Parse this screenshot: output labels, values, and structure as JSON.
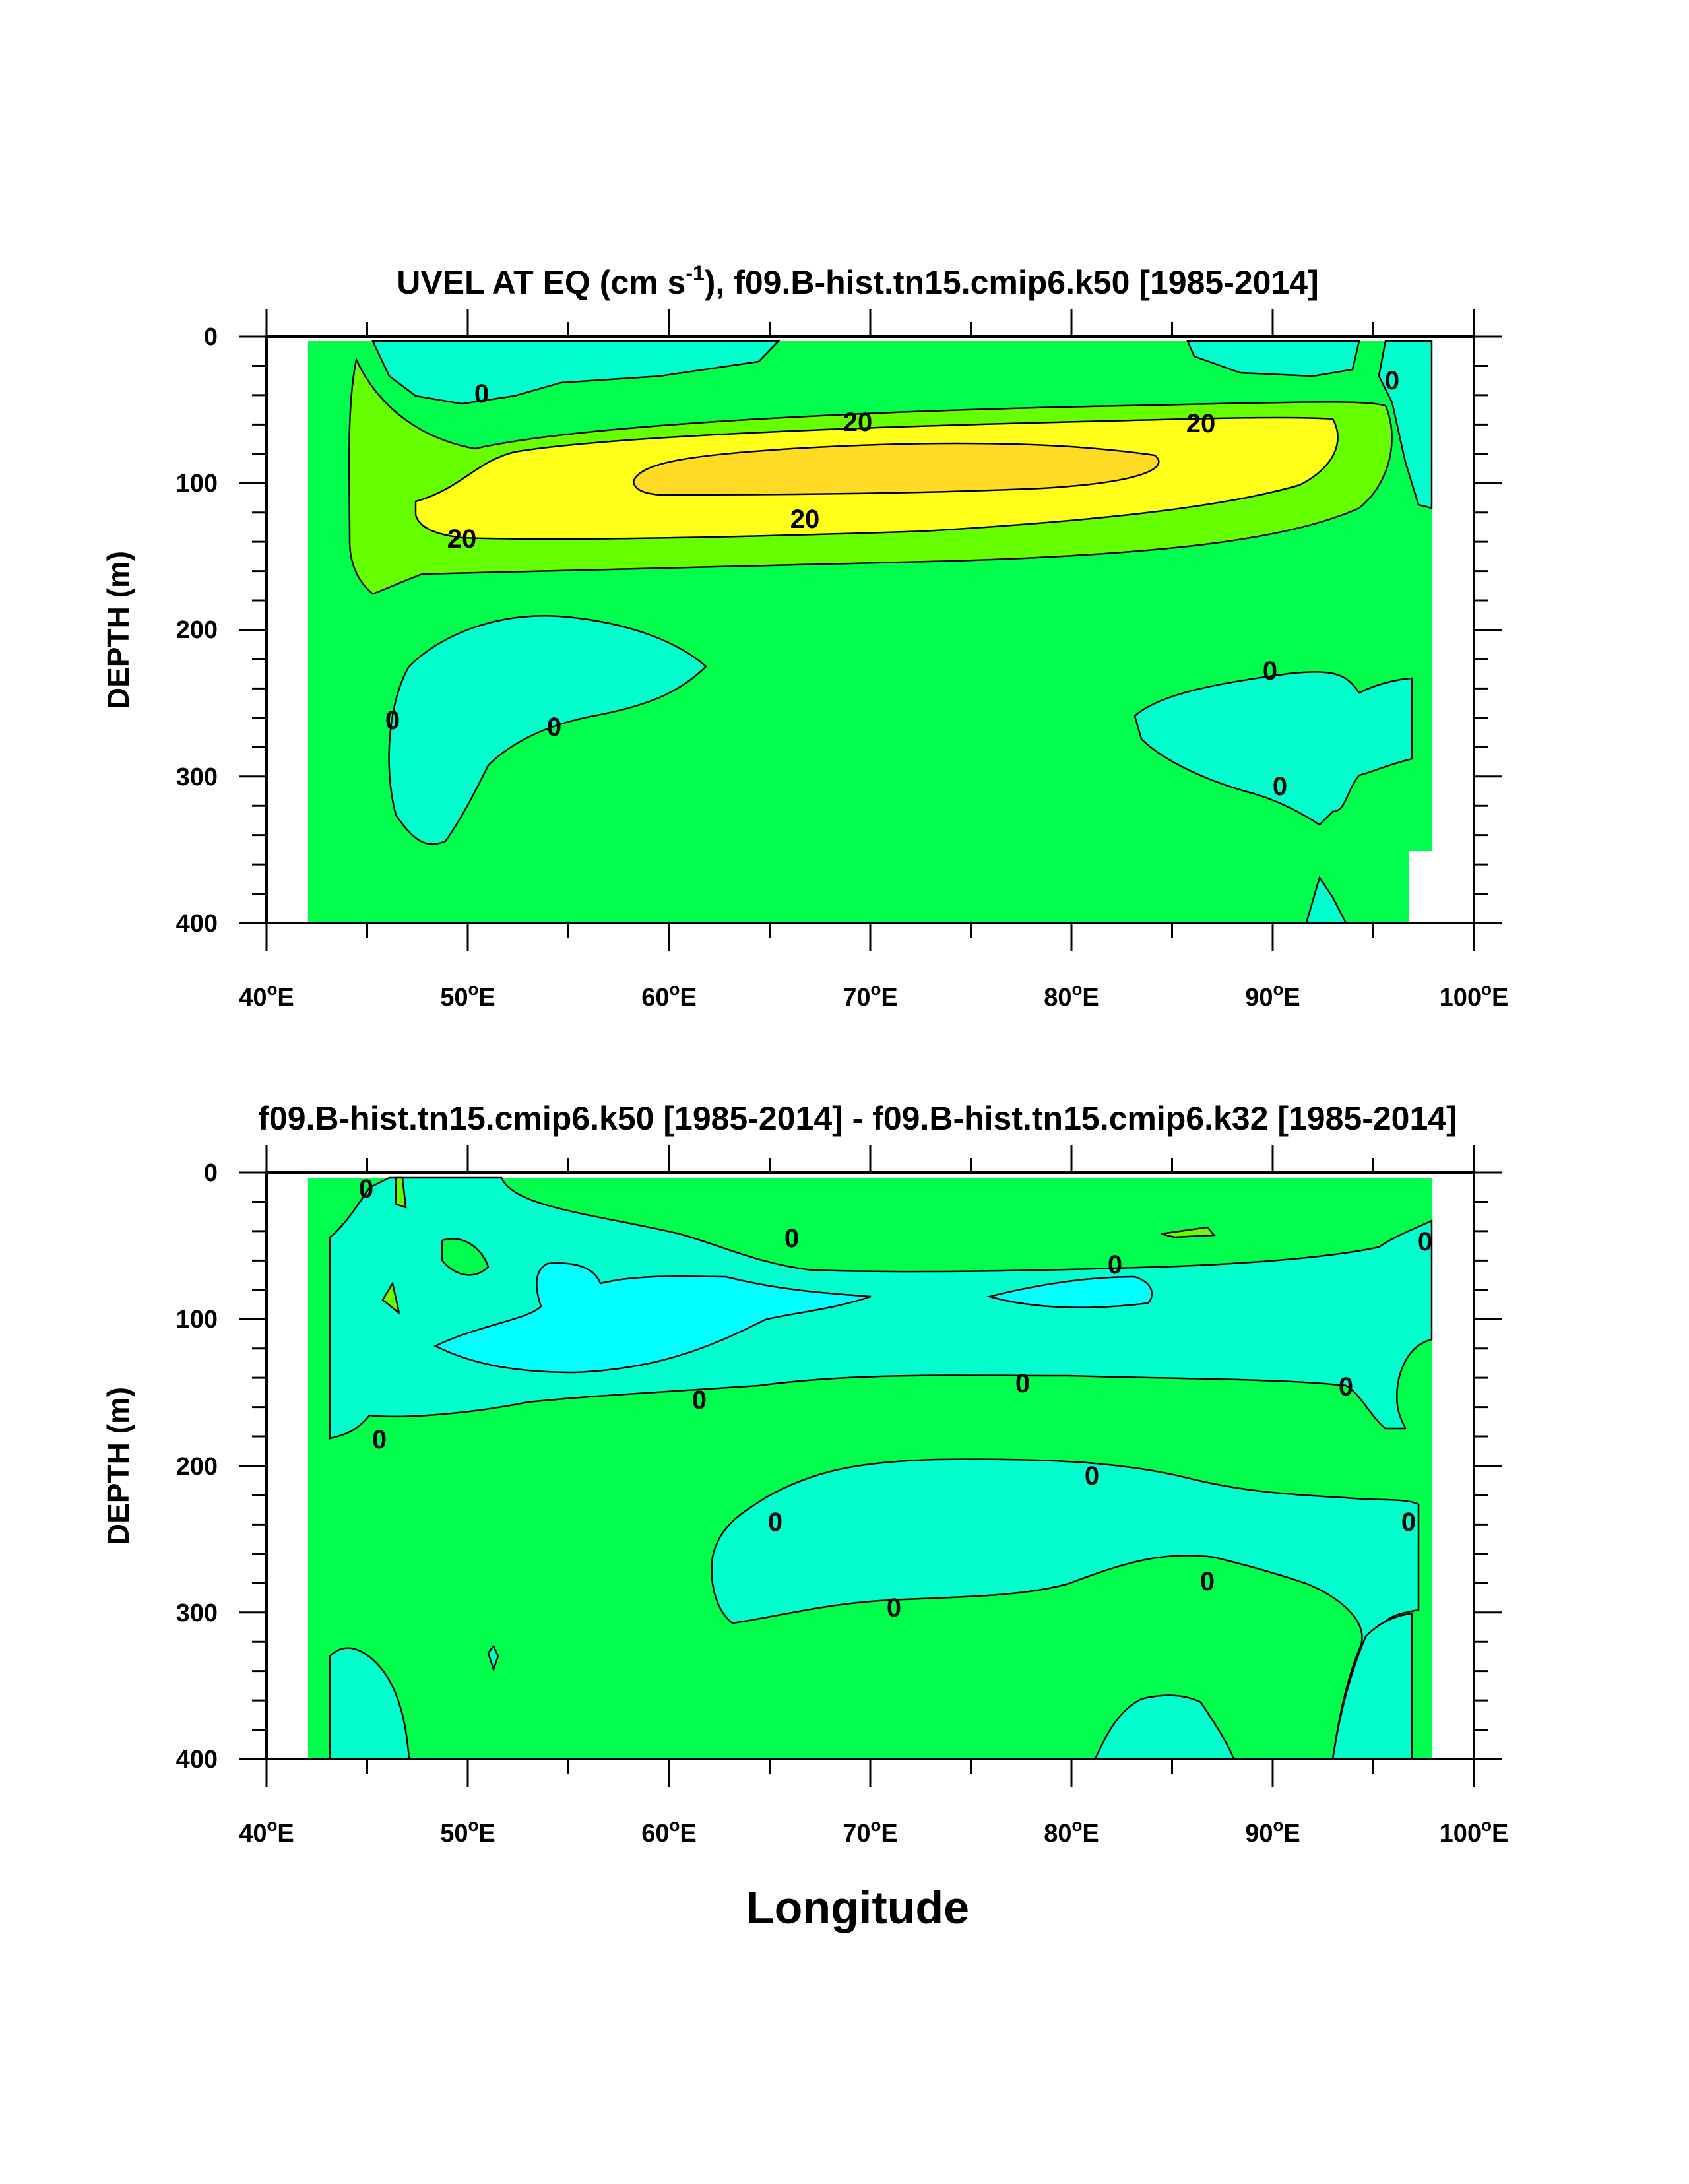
{
  "chart_data": [
    {
      "type": "contour",
      "title_parts": [
        "UVEL AT EQ (cm s",
        "-1",
        "), f09.B-hist.tn15.cmip6.k50 [1985-2014]"
      ],
      "ylabel": "DEPTH (m)",
      "xlabel": "",
      "xlim": [
        40,
        100
      ],
      "ylim": [
        400,
        0
      ],
      "x_ticks": [
        "40",
        "50",
        "60",
        "70",
        "80",
        "90",
        "100"
      ],
      "x_tick_suffix": "E",
      "y_ticks": [
        "0",
        "100",
        "200",
        "300",
        "400"
      ],
      "contour_labels": [
        "0",
        "20",
        "20",
        "20",
        "20",
        "0",
        "0",
        "0",
        "0",
        "0"
      ],
      "colors": {
        "background": "#00ff4d",
        "negative": "#00ffcc",
        "level_10": "#66ff00",
        "level_20": "#ffff1a",
        "level_30": "#ffdb26"
      }
    },
    {
      "type": "contour",
      "title": "f09.B-hist.tn15.cmip6.k50 [1985-2014] - f09.B-hist.tn15.cmip6.k32 [1985-2014]",
      "ylabel": "DEPTH (m)",
      "xlabel": "Longitude",
      "xlim": [
        40,
        100
      ],
      "ylim": [
        400,
        0
      ],
      "x_ticks": [
        "40",
        "50",
        "60",
        "70",
        "80",
        "90",
        "100"
      ],
      "x_tick_suffix": "E",
      "y_ticks": [
        "0",
        "100",
        "200",
        "300",
        "400"
      ],
      "contour_labels": [
        "0",
        "0",
        "0",
        "0",
        "0",
        "0",
        "0",
        "0",
        "0",
        "0",
        "0",
        "0",
        "0"
      ],
      "colors": {
        "background": "#00ff4d",
        "negative": "#00ffcc",
        "strong_negative": "#00ffff",
        "positive": "#66ff00"
      }
    }
  ]
}
